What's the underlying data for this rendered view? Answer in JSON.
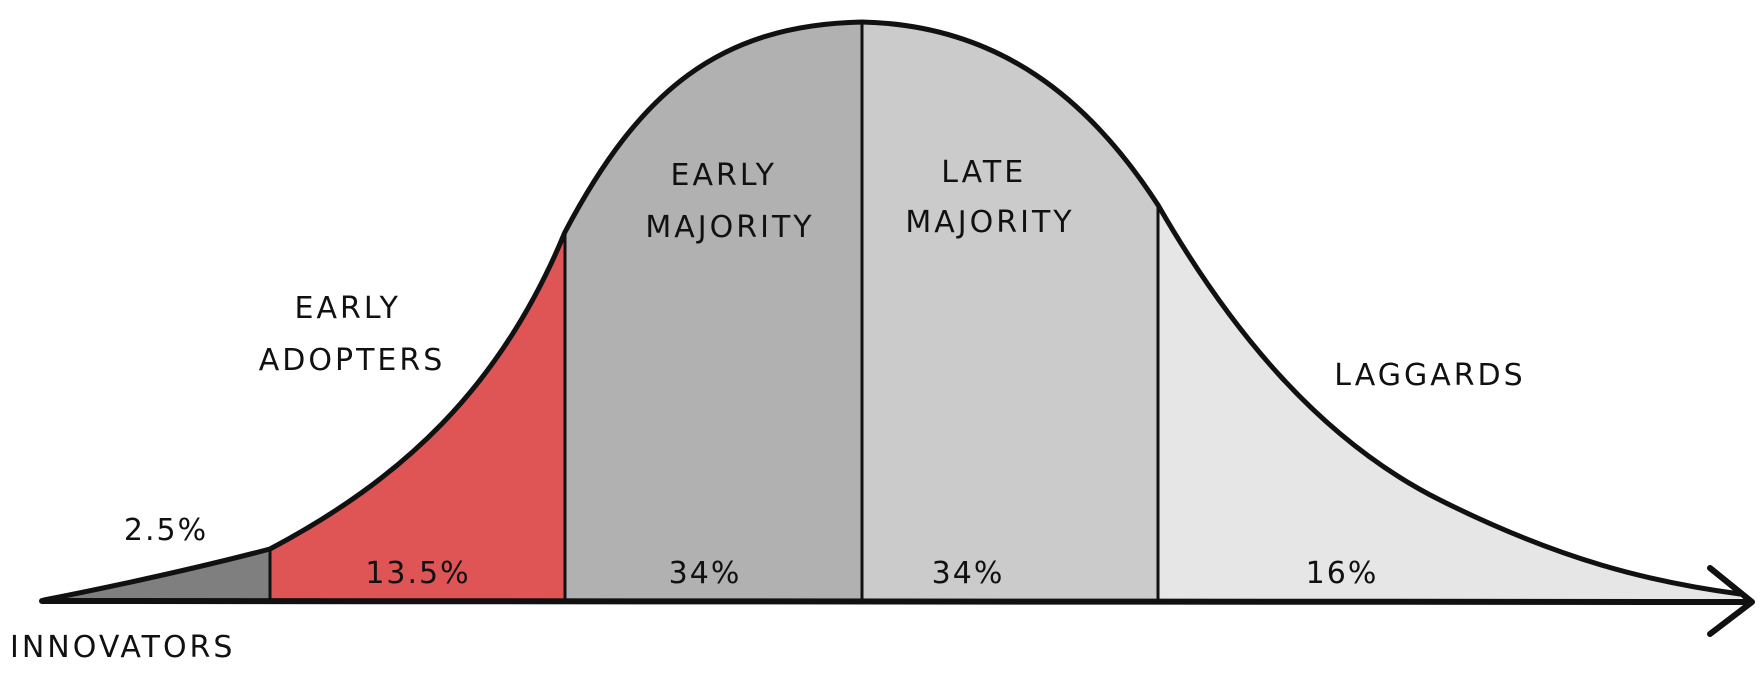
{
  "segments": [
    {
      "id": "innovators",
      "label_lines": [
        "INNOVATORS"
      ],
      "percent": "2.5%",
      "color": "#7f7f7f"
    },
    {
      "id": "early-adopters",
      "label_lines": [
        "EARLY",
        "ADOPTERS"
      ],
      "percent": "13.5%",
      "color": "#df5454"
    },
    {
      "id": "early-majority",
      "label_lines": [
        "EARLY",
        "MAJORITY"
      ],
      "percent": "34%",
      "color": "#b1b1b1"
    },
    {
      "id": "late-majority",
      "label_lines": [
        "LATE",
        "MAJORITY"
      ],
      "percent": "34%",
      "color": "#cbcbcb"
    },
    {
      "id": "laggards",
      "label_lines": [
        "LAGGARDS"
      ],
      "percent": "16%",
      "color": "#e6e6e6"
    }
  ]
}
